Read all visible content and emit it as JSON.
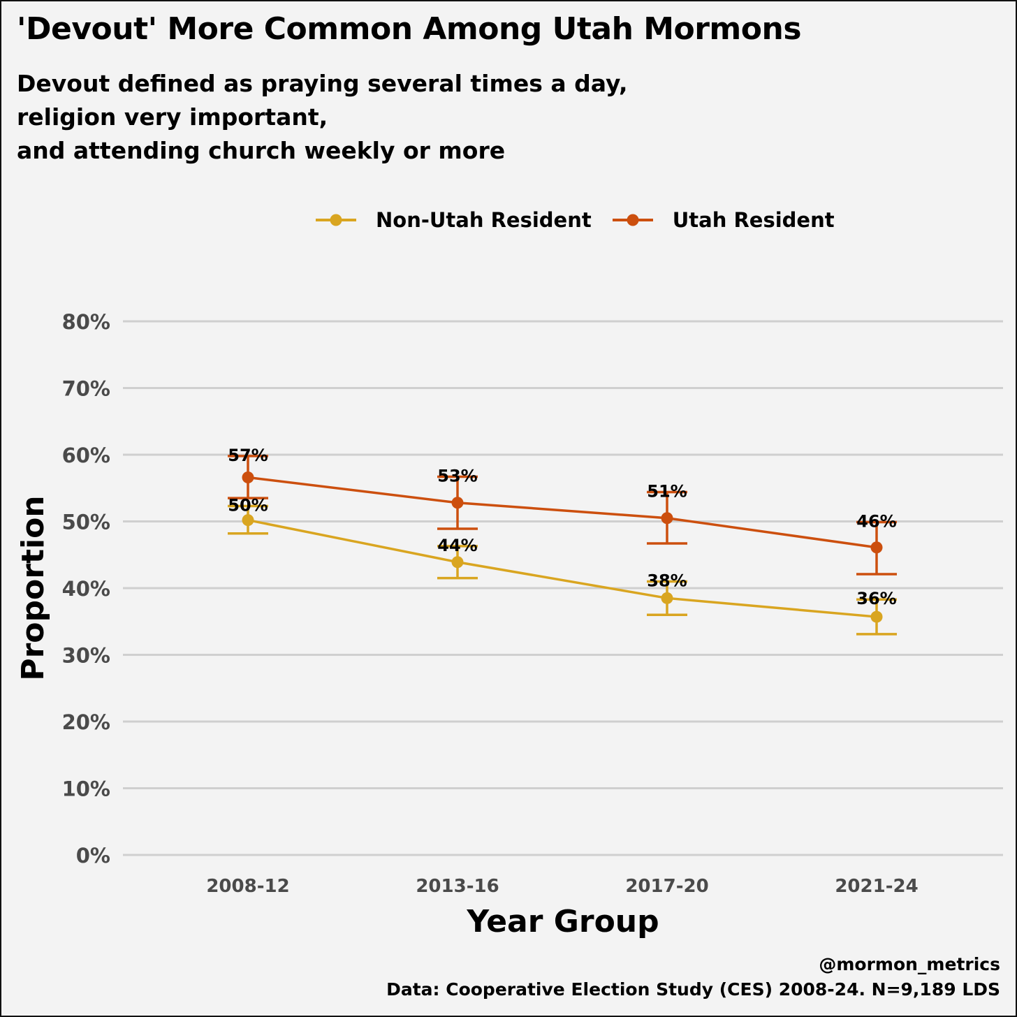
{
  "header": {
    "title": "'Devout' More Common Among Utah Mormons",
    "subtitle_lines": [
      "Devout defined as praying several times a day,",
      "religion very important,",
      "and attending church weekly or more"
    ]
  },
  "footer": {
    "handle": "@mormon_metrics",
    "source": "Data: Cooperative Election Study (CES) 2008-24. N=9,189 LDS"
  },
  "chart_data": {
    "type": "line",
    "title": "'Devout' More Common Among Utah Mormons",
    "xlabel": "Year Group",
    "ylabel": "Proportion",
    "categories": [
      "2008-12",
      "2013-16",
      "2017-20",
      "2021-24"
    ],
    "yticks": [
      "0%",
      "10%",
      "20%",
      "30%",
      "40%",
      "50%",
      "60%",
      "70%",
      "80%"
    ],
    "ylim": [
      0,
      80
    ],
    "grid": true,
    "legend_position": "top",
    "series": [
      {
        "name": "Non-Utah Resident",
        "color": "#d9a520",
        "values": [
          50.2,
          43.9,
          38.5,
          35.7
        ],
        "labels": [
          "50%",
          "44%",
          "38%",
          "36%"
        ],
        "error_low": [
          48.2,
          41.5,
          36.0,
          33.1
        ],
        "error_high": [
          52.3,
          46.3,
          41.0,
          38.3
        ]
      },
      {
        "name": "Utah Resident",
        "color": "#cc4f0e",
        "values": [
          56.6,
          52.8,
          50.5,
          46.1
        ],
        "labels": [
          "57%",
          "53%",
          "51%",
          "46%"
        ],
        "error_low": [
          53.5,
          48.9,
          46.7,
          42.1
        ],
        "error_high": [
          59.8,
          56.7,
          54.4,
          49.9
        ]
      }
    ]
  }
}
